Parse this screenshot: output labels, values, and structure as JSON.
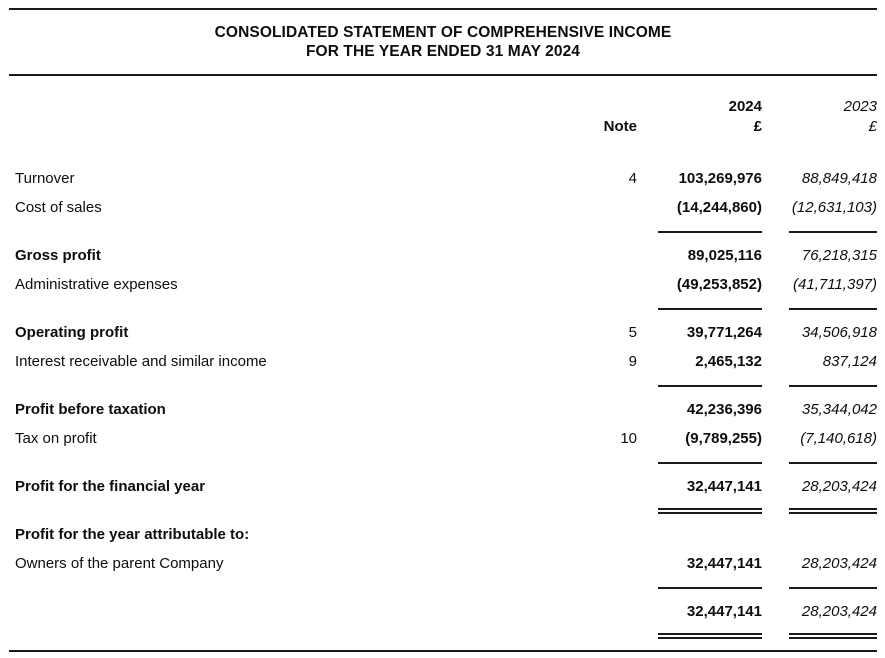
{
  "document": {
    "title_line1": "CONSOLIDATED STATEMENT OF COMPREHENSIVE INCOME",
    "title_line2": "FOR THE YEAR ENDED 31 MAY 2024"
  },
  "columns": {
    "note_label": "Note",
    "year_current": "2024",
    "year_prior": "2023",
    "currency_current": "£",
    "currency_prior": "£"
  },
  "colors": {
    "text": "#0d0d0d",
    "rule": "#1a1a1a",
    "background": "#ffffff"
  },
  "statement": {
    "rows": [
      {
        "type": "data",
        "label": "Turnover",
        "note": "4",
        "v1": "103,269,976",
        "v2": "88,849,418",
        "bold": false
      },
      {
        "type": "data",
        "label": "Cost of sales",
        "note": "",
        "v1": "(14,244,860)",
        "v2": "(12,631,103)",
        "bold": false
      },
      {
        "type": "rule"
      },
      {
        "type": "data",
        "label": "Gross profit",
        "note": "",
        "v1": "89,025,116",
        "v2": "76,218,315",
        "bold": true
      },
      {
        "type": "data",
        "label": "Administrative expenses",
        "note": "",
        "v1": "(49,253,852)",
        "v2": "(41,711,397)",
        "bold": false
      },
      {
        "type": "rule"
      },
      {
        "type": "data",
        "label": "Operating profit",
        "note": "5",
        "v1": "39,771,264",
        "v2": "34,506,918",
        "bold": true
      },
      {
        "type": "data",
        "label": "Interest receivable and similar income",
        "note": "9",
        "v1": "2,465,132",
        "v2": "837,124",
        "bold": false
      },
      {
        "type": "rule"
      },
      {
        "type": "data",
        "label": "Profit before taxation",
        "note": "",
        "v1": "42,236,396",
        "v2": "35,344,042",
        "bold": true
      },
      {
        "type": "data",
        "label": "Tax on profit",
        "note": "10",
        "v1": "(9,789,255)",
        "v2": "(7,140,618)",
        "bold": false
      },
      {
        "type": "rule"
      },
      {
        "type": "data",
        "label": "Profit for the financial year",
        "note": "",
        "v1": "32,447,141",
        "v2": "28,203,424",
        "bold": true
      },
      {
        "type": "rule2"
      },
      {
        "type": "data",
        "label": "Profit for the year attributable to:",
        "note": "",
        "v1": "",
        "v2": "",
        "bold": true
      },
      {
        "type": "data",
        "label": "Owners of the parent Company",
        "note": "",
        "v1": "32,447,141",
        "v2": "28,203,424",
        "bold": false
      },
      {
        "type": "rule"
      },
      {
        "type": "data",
        "label": "",
        "note": "",
        "v1": "32,447,141",
        "v2": "28,203,424",
        "bold": false
      },
      {
        "type": "rule2"
      }
    ]
  }
}
